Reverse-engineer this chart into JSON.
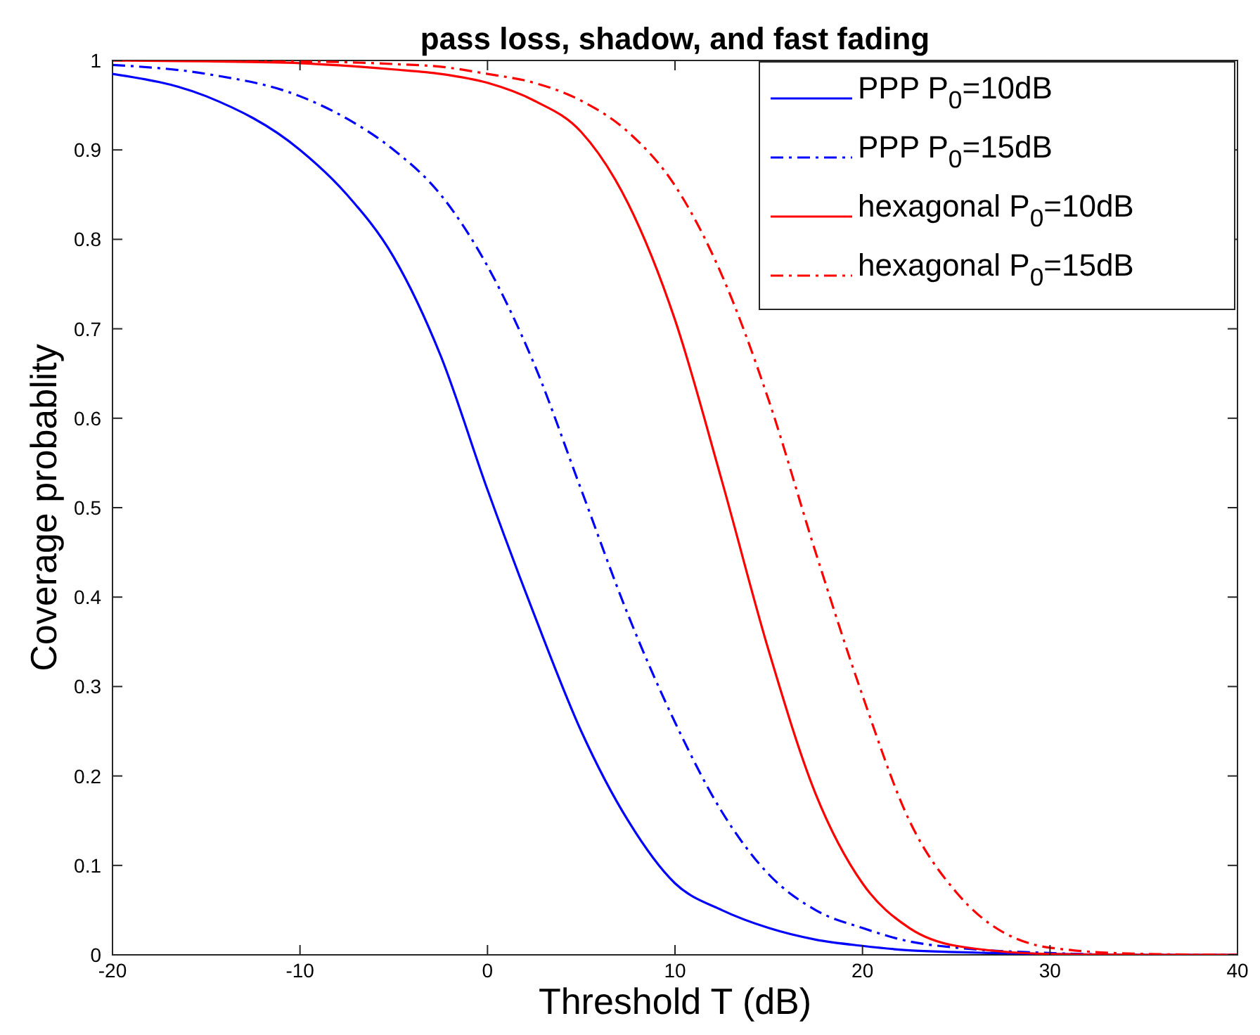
{
  "chart_data": {
    "type": "line",
    "title": "pass loss, shadow, and fast fading",
    "xlabel": "Threshold T (dB)",
    "ylabel": "Coverage probablity",
    "x": [
      -20,
      -15,
      -10,
      -7.5,
      -5,
      -2.5,
      0,
      2.5,
      5,
      7.5,
      10,
      12.5,
      15,
      17.5,
      20,
      22.5,
      25,
      30,
      35,
      40
    ],
    "xlim": [
      -20,
      40
    ],
    "xticks": [
      -20,
      -10,
      0,
      10,
      20,
      30,
      40
    ],
    "ylim": [
      0,
      1
    ],
    "yticks": [
      0,
      0.1,
      0.2,
      0.3,
      0.4,
      0.5,
      0.6,
      0.7,
      0.8,
      0.9,
      1
    ],
    "grid": false,
    "legend": "top right",
    "series": [
      {
        "name": "PPP P$_{0}$=10dB",
        "color": "#0000ff",
        "line_style": "solid",
        "values": [
          0.985,
          0.96,
          0.9,
          0.85,
          0.78,
          0.67,
          0.52,
          0.38,
          0.25,
          0.15,
          0.08,
          0.05,
          0.03,
          0.017,
          0.01,
          0.005,
          0.003,
          0.001,
          0,
          0
        ]
      },
      {
        "name": "PPP P$_{0}$=15dB",
        "color": "#0000ff",
        "line_style": "dashdot",
        "values": [
          0.995,
          0.985,
          0.96,
          0.935,
          0.9,
          0.85,
          0.77,
          0.66,
          0.52,
          0.38,
          0.26,
          0.16,
          0.09,
          0.05,
          0.03,
          0.015,
          0.008,
          0.002,
          0,
          0
        ]
      },
      {
        "name": "hexagonal P$_{0}$=10dB",
        "color": "#ff0000",
        "line_style": "solid",
        "values": [
          1,
          0.999,
          0.997,
          0.994,
          0.99,
          0.985,
          0.975,
          0.955,
          0.92,
          0.84,
          0.71,
          0.53,
          0.34,
          0.18,
          0.08,
          0.03,
          0.01,
          0.001,
          0,
          0
        ]
      },
      {
        "name": "hexagonal P$_{0}$=15dB",
        "color": "#ff0000",
        "line_style": "dashdot",
        "values": [
          1,
          1,
          0.999,
          0.998,
          0.996,
          0.993,
          0.985,
          0.975,
          0.955,
          0.92,
          0.86,
          0.76,
          0.62,
          0.45,
          0.29,
          0.15,
          0.07,
          0.008,
          0.001,
          0
        ]
      }
    ]
  }
}
